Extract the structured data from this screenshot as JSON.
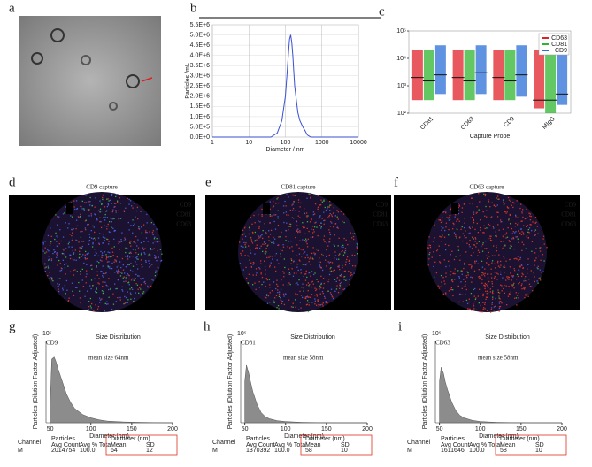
{
  "panels": {
    "a": "a",
    "d": "d",
    "e": "e",
    "f": "f"
  },
  "images": [
    {
      "panel": "d",
      "title": "CD9 capture",
      "channels": [
        {
          "name": "CD9",
          "color": "#4a5bd6"
        },
        {
          "name": "CD81",
          "color": "#3cb043"
        },
        {
          "name": "CD63",
          "color": "#d0342c"
        }
      ]
    },
    {
      "panel": "e",
      "title": "CD81 capture",
      "channels": [
        {
          "name": "CD9",
          "color": "#4a5bd6"
        },
        {
          "name": "CD81",
          "color": "#3cb043"
        },
        {
          "name": "CD63",
          "color": "#d0342c"
        }
      ]
    },
    {
      "panel": "f",
      "title": "CD63 capture",
      "channels": [
        {
          "name": "CD9",
          "color": "#4a5bd6"
        },
        {
          "name": "CD81",
          "color": "#3cb043"
        },
        {
          "name": "CD63",
          "color": "#d0342c"
        }
      ]
    }
  ],
  "chart_data": [
    {
      "type": "line",
      "panel": "b",
      "xlabel": "Diameter / nm",
      "ylabel": "Particles /mL",
      "xscale": "log",
      "color": "#3a4fd0",
      "x": [
        1,
        10,
        40,
        60,
        80,
        100,
        110,
        120,
        130,
        140,
        150,
        160,
        170,
        180,
        200,
        220,
        250,
        300,
        350,
        400,
        500,
        1000,
        10000
      ],
      "values": [
        0,
        0,
        0,
        200000,
        800000,
        2000000,
        3000000,
        4000000,
        4800000,
        5000000,
        4600000,
        4000000,
        3200000,
        2500000,
        1800000,
        1200000,
        800000,
        500000,
        300000,
        100000,
        0,
        0,
        0
      ],
      "xlim": [
        1,
        10000
      ],
      "xticks": [
        1,
        10,
        100,
        1000,
        10000
      ],
      "ylim": [
        0,
        5500000
      ],
      "yticks": [
        {
          "value": 0,
          "label": "0.0E+0"
        },
        {
          "value": 500000,
          "label": "5.0E+5"
        },
        {
          "value": 1000000,
          "label": "1.0E+6"
        },
        {
          "value": 1500000,
          "label": "1.5E+6"
        },
        {
          "value": 2000000,
          "label": "2.0E+6"
        },
        {
          "value": 2500000,
          "label": "2.5E+6"
        },
        {
          "value": 3000000,
          "label": "3.0E+6"
        },
        {
          "value": 3500000,
          "label": "3.5E+6"
        },
        {
          "value": 4000000,
          "label": "4.0E+6"
        },
        {
          "value": 4500000,
          "label": "4.5E+6"
        },
        {
          "value": 5000000,
          "label": "5.0E+6"
        },
        {
          "value": 5500000,
          "label": "5.5E+6"
        }
      ],
      "grid": true
    },
    {
      "type": "strip",
      "panel": "c",
      "xlabel": "Capture Probe",
      "yscale": "log",
      "categories": [
        "CD81",
        "CD63",
        "CD9",
        "MIgG"
      ],
      "series": [
        {
          "name": "CD63",
          "color": "#e0202a",
          "values": [
            2000,
            2000,
            2000,
            300
          ],
          "lows": [
            300,
            300,
            300,
            150
          ],
          "highs": [
            20000,
            20000,
            20000,
            20000
          ]
        },
        {
          "name": "CD81",
          "color": "#2fb52f",
          "values": [
            1500,
            1500,
            1500,
            300
          ],
          "lows": [
            300,
            300,
            300,
            100
          ],
          "highs": [
            20000,
            20000,
            20000,
            20000
          ]
        },
        {
          "name": "CD9",
          "color": "#2a6fd8",
          "values": [
            2500,
            3000,
            2500,
            500
          ],
          "lows": [
            500,
            500,
            400,
            200
          ],
          "highs": [
            30000,
            30000,
            30000,
            20000
          ]
        }
      ],
      "ylim": [
        100,
        100000
      ],
      "yticks": [
        {
          "value": 100,
          "label": "10²"
        },
        {
          "value": 1000,
          "label": "10³"
        },
        {
          "value": 10000,
          "label": "10⁴"
        },
        {
          "value": 100000,
          "label": "10⁵"
        }
      ],
      "legend": "top-right"
    },
    {
      "type": "area",
      "panel": "g",
      "title": "Size Distribution",
      "xlabel": "Diameter (nm)",
      "ylabel": "Particles (Dilution Factor Adjusted)",
      "exponent": "10⁵",
      "probe": "CD9",
      "annotation": "mean size 64nm",
      "color": "#8c8c8c",
      "x": [
        50,
        52,
        55,
        57,
        60,
        65,
        70,
        75,
        80,
        90,
        100,
        110,
        120,
        140,
        160,
        180,
        200
      ],
      "values": [
        0.4,
        1.55,
        1.6,
        1.5,
        1.3,
        1.0,
        0.7,
        0.5,
        0.35,
        0.2,
        0.12,
        0.07,
        0.04,
        0.02,
        0.01,
        0.005,
        0
      ],
      "xlim": [
        45,
        200
      ],
      "xticks": [
        50,
        100,
        150,
        200
      ],
      "ylim": [
        0,
        2
      ],
      "table": {
        "headers": [
          "Channel",
          "Particles",
          "Avg Count",
          "Avg % Total",
          "Diameter (nm)",
          "Mean",
          "SD"
        ],
        "row": [
          "M",
          "2014754",
          "100.0",
          "64",
          "12"
        ]
      }
    },
    {
      "type": "area",
      "panel": "h",
      "title": "Size Distribution",
      "xlabel": "Diameter (nm)",
      "ylabel": "Particles (Dilution Factor Adjusted)",
      "exponent": "10⁵",
      "probe": "CD81",
      "annotation": "mean size 58nm",
      "color": "#8c8c8c",
      "x": [
        50,
        52,
        55,
        57,
        60,
        65,
        70,
        75,
        80,
        90,
        100,
        110,
        120,
        140,
        160,
        180,
        200
      ],
      "values": [
        1.0,
        1.4,
        1.2,
        1.0,
        0.75,
        0.45,
        0.25,
        0.15,
        0.1,
        0.05,
        0.03,
        0.02,
        0.01,
        0.005,
        0,
        0,
        0
      ],
      "xlim": [
        45,
        200
      ],
      "xticks": [
        50,
        100,
        150,
        200
      ],
      "ylim": [
        0,
        2
      ],
      "table": {
        "headers": [
          "Channel",
          "Particles",
          "Avg Count",
          "Avg % Total",
          "Diameter (nm)",
          "Mean",
          "SD"
        ],
        "row": [
          "M",
          "1370392",
          "100.0",
          "58",
          "10"
        ]
      }
    },
    {
      "type": "area",
      "panel": "i",
      "title": "Size Distribution",
      "xlabel": "Diameter (nm)",
      "ylabel": "Particles (Dilution Factor Adjusted)",
      "exponent": "10⁵",
      "probe": "CD63",
      "annotation": "mean size 58nm",
      "color": "#8c8c8c",
      "x": [
        50,
        52,
        55,
        57,
        60,
        65,
        70,
        75,
        80,
        90,
        100,
        110,
        120,
        140,
        160,
        180,
        200
      ],
      "values": [
        1.0,
        1.35,
        1.2,
        1.0,
        0.8,
        0.5,
        0.3,
        0.18,
        0.12,
        0.06,
        0.03,
        0.02,
        0.01,
        0.005,
        0,
        0,
        0
      ],
      "xlim": [
        45,
        200
      ],
      "xticks": [
        50,
        100,
        150,
        200
      ],
      "ylim": [
        0,
        2
      ],
      "table": {
        "headers": [
          "Channel",
          "Particles",
          "Avg Count",
          "Avg % Total",
          "Diameter (nm)",
          "Mean",
          "SD"
        ],
        "row": [
          "M",
          "1611646",
          "100.0",
          "58",
          "10"
        ]
      }
    }
  ]
}
